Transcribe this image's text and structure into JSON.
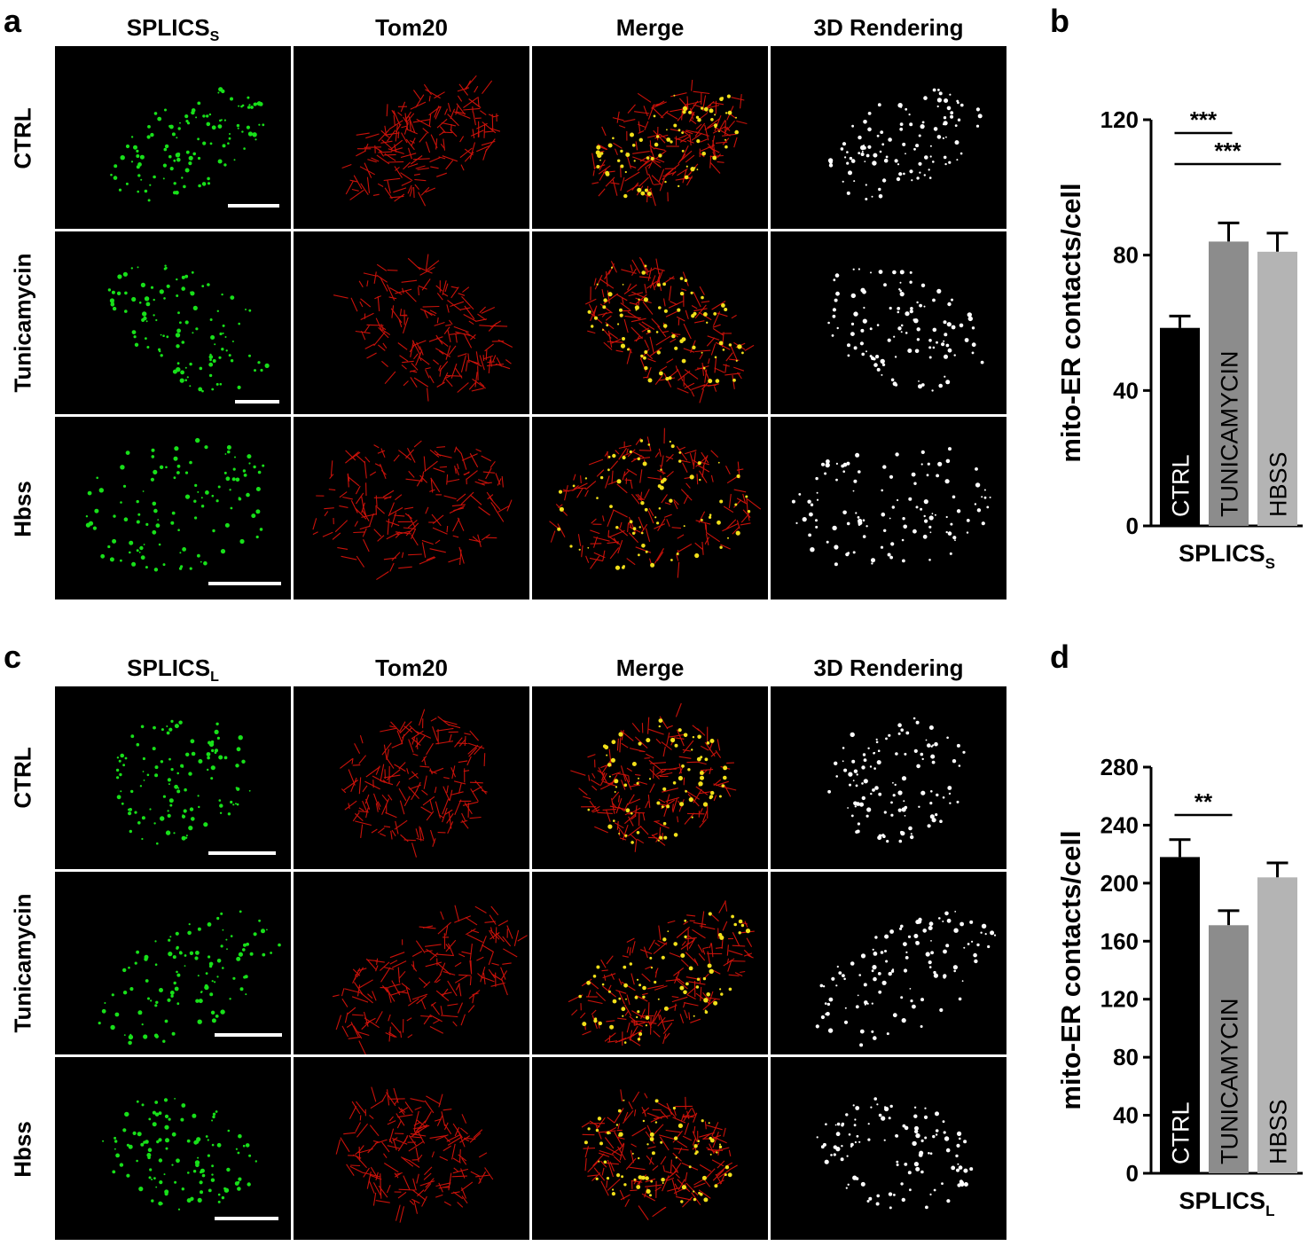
{
  "figure": {
    "panels": {
      "a": "a",
      "b": "b",
      "c": "c",
      "d": "d"
    },
    "top_group": {
      "columns": [
        {
          "label": "SPLICS",
          "sub": "S"
        },
        {
          "label": "Tom20",
          "sub": ""
        },
        {
          "label": "Merge",
          "sub": ""
        },
        {
          "label": "3D Rendering",
          "sub": ""
        }
      ],
      "rows": [
        "CTRL",
        "Tunicamycin",
        "Hbss"
      ]
    },
    "bottom_group": {
      "columns": [
        {
          "label": "SPLICS",
          "sub": "L"
        },
        {
          "label": "Tom20",
          "sub": ""
        },
        {
          "label": "Merge",
          "sub": ""
        },
        {
          "label": "3D Rendering",
          "sub": ""
        }
      ],
      "rows": [
        "CTRL",
        "Tunicamycin",
        "Hbss"
      ]
    },
    "colors": {
      "splics": "#18e01a",
      "tom20": "#e0140c",
      "merge_overlap": "#f2e01a",
      "render": "#ffffff",
      "ctrl_bar": "#000000",
      "tunica_bar": "#8c8c8c",
      "hbss_bar": "#b4b4b4"
    }
  },
  "chart_data": [
    {
      "type": "bar",
      "panel": "b",
      "categories": [
        "CTRL",
        "TUNICAMYCIN",
        "HBSS"
      ],
      "values": [
        58.5,
        84,
        81
      ],
      "errors": [
        3.5,
        5.5,
        5.5
      ],
      "ylabel": "mito-ER contacts/cell",
      "xlabel": "SPLICS",
      "xlabel_sub": "S",
      "ylim": [
        0,
        120
      ],
      "yticks": [
        0,
        40,
        80,
        120
      ],
      "significance": [
        {
          "from": 0,
          "to": 1,
          "label": "***"
        },
        {
          "from": 0,
          "to": 2,
          "label": "***"
        }
      ]
    },
    {
      "type": "bar",
      "panel": "d",
      "categories": [
        "CTRL",
        "TUNICAMYCIN",
        "HBSS"
      ],
      "values": [
        218,
        171,
        204
      ],
      "errors": [
        12,
        10,
        10
      ],
      "ylabel": "mito-ER contacts/cell",
      "xlabel": "SPLICS",
      "xlabel_sub": "L",
      "ylim": [
        0,
        280
      ],
      "yticks": [
        0,
        40,
        80,
        120,
        160,
        200,
        240,
        280
      ],
      "significance": [
        {
          "from": 0,
          "to": 1,
          "label": "**"
        }
      ]
    }
  ]
}
